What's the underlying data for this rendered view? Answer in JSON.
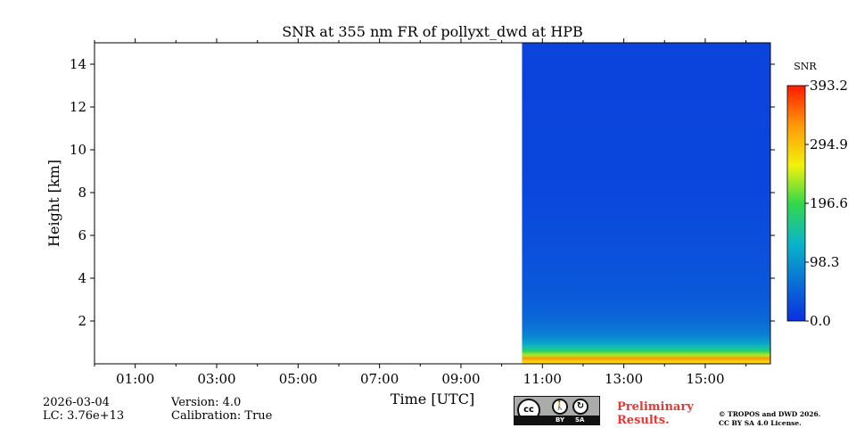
{
  "chart_data": {
    "type": "heatmap",
    "title": "SNR at 355 nm FR of pollyxt_dwd at HPB",
    "xlabel": "Time [UTC]",
    "ylabel": "Height [km]",
    "x_range_hours": [
      0,
      16.6
    ],
    "x_ticks": [
      {
        "value": 1,
        "label": "01:00"
      },
      {
        "value": 3,
        "label": "03:00"
      },
      {
        "value": 5,
        "label": "05:00"
      },
      {
        "value": 7,
        "label": "07:00"
      },
      {
        "value": 9,
        "label": "09:00"
      },
      {
        "value": 11,
        "label": "11:00"
      },
      {
        "value": 13,
        "label": "13:00"
      },
      {
        "value": 15,
        "label": "15:00"
      }
    ],
    "ylim": [
      0,
      15
    ],
    "y_ticks": [
      {
        "value": 2,
        "label": "2"
      },
      {
        "value": 4,
        "label": "4"
      },
      {
        "value": 6,
        "label": "6"
      },
      {
        "value": 8,
        "label": "8"
      },
      {
        "value": 10,
        "label": "10"
      },
      {
        "value": 12,
        "label": "12"
      },
      {
        "value": 14,
        "label": "14"
      }
    ],
    "data_start_hour": 10.5,
    "colorbar": {
      "label": "SNR",
      "min": 0.0,
      "max": 393.2,
      "ticks": [
        {
          "value": 0.0,
          "label": "0.0"
        },
        {
          "value": 98.3,
          "label": "98.3"
        },
        {
          "value": 196.6,
          "label": "196.6"
        },
        {
          "value": 294.9,
          "label": "294.9"
        },
        {
          "value": 393.2,
          "label": "393.2"
        }
      ]
    },
    "snr_profile": [
      {
        "height_km": 0.1,
        "snr": 280
      },
      {
        "height_km": 0.25,
        "snr": 330
      },
      {
        "height_km": 0.4,
        "snr": 240
      },
      {
        "height_km": 0.6,
        "snr": 180
      },
      {
        "height_km": 0.8,
        "snr": 140
      },
      {
        "height_km": 1.0,
        "snr": 110
      },
      {
        "height_km": 1.4,
        "snr": 80
      },
      {
        "height_km": 2.0,
        "snr": 60
      },
      {
        "height_km": 3.0,
        "snr": 45
      },
      {
        "height_km": 5.0,
        "snr": 35
      },
      {
        "height_km": 8.0,
        "snr": 25
      },
      {
        "height_km": 15.0,
        "snr": 20
      }
    ],
    "colors": [
      "#0b2fe0",
      "#0a6fd6",
      "#0ab5c8",
      "#33d84a",
      "#f2f20c",
      "#ff9a08",
      "#ff1a00"
    ]
  },
  "footer": {
    "date": "2026-03-04",
    "lc": "LC: 3.76e+13",
    "version": "Version: 4.0",
    "calibration": "Calibration: True",
    "preliminary_line1": "Preliminary",
    "preliminary_line2": "Results.",
    "copyright_line1": "© TROPOS and DWD 2026.",
    "copyright_line2": "CC BY SA 4.0 License.",
    "cc_by": "BY",
    "cc_sa": "SA"
  }
}
